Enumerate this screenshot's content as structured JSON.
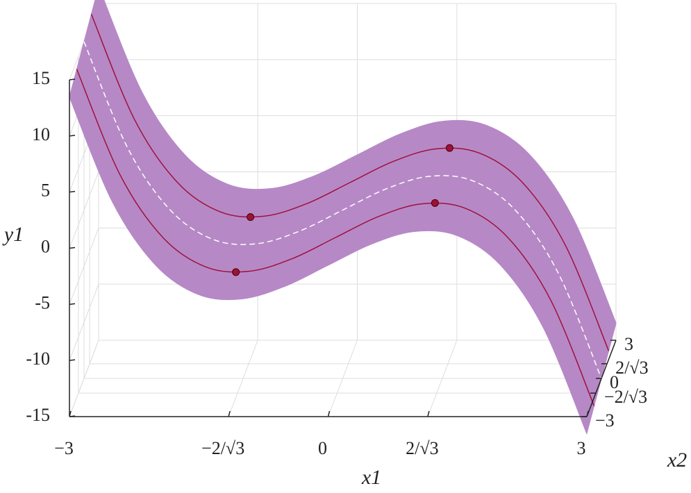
{
  "chart_data": {
    "type": "surface",
    "xlabel": "x1",
    "zlabel": "x2",
    "ylabel": "y1",
    "x1": [
      -3,
      -2.5,
      -2,
      -1.5,
      -1,
      -0.5,
      0,
      0.5,
      1,
      1.5,
      2,
      2.5,
      3
    ],
    "x2": [
      -3,
      -1.5,
      0,
      1.5,
      3
    ],
    "z": [
      [
        13.5,
        4.125,
        -1.5,
        -4.125,
        -4.5,
        -3.375,
        -1.5,
        0.375,
        1.5,
        1.125,
        -1.5,
        -7.125,
        -16.5
      ],
      [
        14.25,
        4.875,
        -0.75,
        -3.375,
        -3.75,
        -2.625,
        -0.75,
        1.125,
        2.25,
        1.875,
        -0.75,
        -6.375,
        -15.75
      ],
      [
        15,
        5.625,
        0,
        -2.625,
        -3,
        -1.875,
        0,
        1.875,
        3,
        2.625,
        0,
        -5.625,
        -15
      ],
      [
        15.75,
        6.375,
        0.75,
        -1.875,
        -2.25,
        -1.125,
        0.75,
        2.625,
        3.75,
        3.375,
        0.75,
        -4.875,
        -14.25
      ],
      [
        16.5,
        7.125,
        1.5,
        -1.125,
        -1.5,
        -0.375,
        1.5,
        3.375,
        4.5,
        4.125,
        1.5,
        -4.125,
        -13.5
      ]
    ],
    "surface_color": "#b689c6",
    "line_colors": [
      "#b689c6",
      "#a0103a",
      "#ffffff",
      "#a0103a",
      "#b689c6"
    ],
    "markers": {
      "x1": [
        -1.1547,
        -1.1547,
        1.1547,
        1.1547
      ],
      "x2": [
        -1.5,
        1.5,
        -1.5,
        1.5
      ],
      "y1": [
        -3.829,
        -2.329,
        2.329,
        3.829
      ],
      "color": "#a0103a"
    },
    "x1lim": [
      -3,
      3
    ],
    "x2lim": [
      -3,
      3
    ],
    "ylim": [
      -15,
      15
    ],
    "x1ticks": [
      {
        "value": -3,
        "label": "−3"
      },
      {
        "value": -1.1547,
        "label": "−2/√3"
      },
      0,
      {
        "value": 1.1547,
        "label": "2/√3"
      },
      3
    ],
    "x2ticks": [
      {
        "value": -3,
        "label": "−3"
      },
      {
        "value": -1.1547,
        "label": "−2/√3"
      },
      0,
      {
        "value": 1.1547,
        "label": "2/√3"
      },
      3
    ],
    "yticks": [
      -15,
      -10,
      -5,
      0,
      5,
      10,
      15
    ],
    "grid": true
  }
}
